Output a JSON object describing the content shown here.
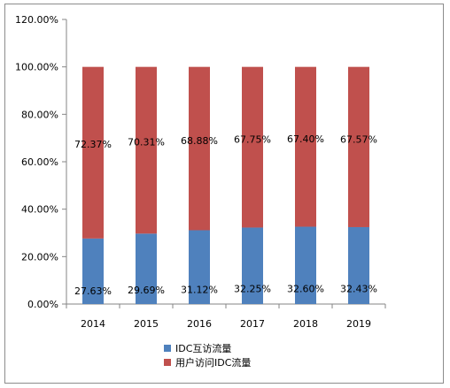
{
  "chart_data": {
    "type": "bar",
    "stacked": true,
    "categories": [
      "2014",
      "2015",
      "2016",
      "2017",
      "2018",
      "2019"
    ],
    "series": [
      {
        "name": "IDC互访流量",
        "color": "#4f81bd",
        "values": [
          27.63,
          29.69,
          31.12,
          32.25,
          32.6,
          32.43
        ],
        "labels": [
          "27.63%",
          "29.69%",
          "31.12%",
          "32.25%",
          "32.60%",
          "32.43%"
        ]
      },
      {
        "name": "用户访问IDC流量",
        "color": "#c0504d",
        "values": [
          72.37,
          70.31,
          68.88,
          67.75,
          67.4,
          67.57
        ],
        "labels": [
          "72.37%",
          "70.31%",
          "68.88%",
          "67.75%",
          "67.40%",
          "67.57%"
        ]
      }
    ],
    "y_ticks": [
      "0.00%",
      "20.00%",
      "40.00%",
      "60.00%",
      "80.00%",
      "100.00%",
      "120.00%"
    ],
    "ylim": [
      0,
      120
    ],
    "grid": false,
    "legend_position": "bottom",
    "title": "",
    "xlabel": "",
    "ylabel": ""
  }
}
